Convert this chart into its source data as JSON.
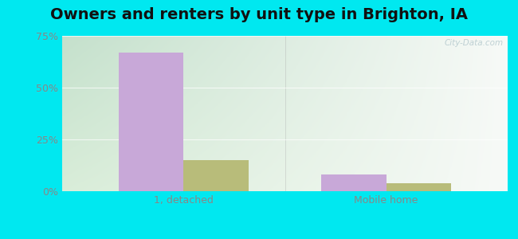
{
  "title": "Owners and renters by unit type in Brighton, IA",
  "categories": [
    "1, detached",
    "Mobile home"
  ],
  "owner_values": [
    67.0,
    8.0
  ],
  "renter_values": [
    15.0,
    4.0
  ],
  "owner_color": "#c8a8d8",
  "renter_color": "#b8bc7a",
  "ylim": [
    0,
    75
  ],
  "yticks": [
    0,
    25,
    50,
    75
  ],
  "ytick_labels": [
    "0%",
    "25%",
    "50%",
    "75%"
  ],
  "bar_width": 0.32,
  "outer_bg": "#00e8f0",
  "plot_bg_left": "#c8dca8",
  "plot_bg_right": "#eaf5ea",
  "watermark": "City-Data.com",
  "title_fontsize": 14,
  "tick_fontsize": 9,
  "legend_fontsize": 9
}
